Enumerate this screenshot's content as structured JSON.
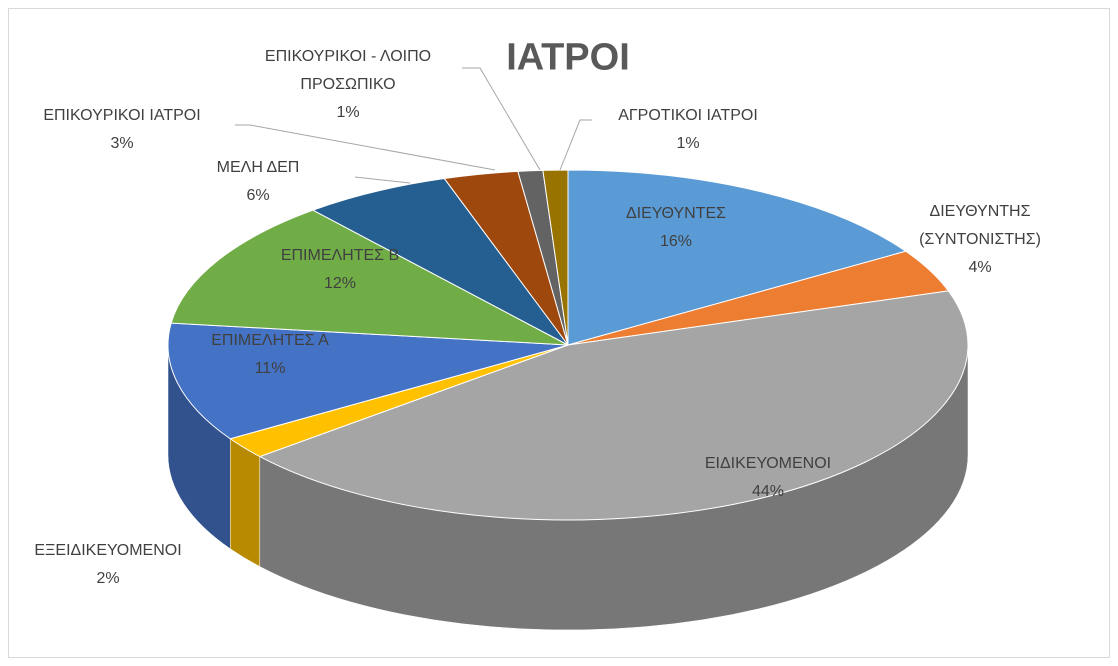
{
  "chart_data": {
    "type": "pie3d",
    "title": "ΙΑΤΡΟΙ",
    "categories": [
      "ΔΙΕΥΘΥΝΤΕΣ",
      "ΔΙΕΥΘΥΝΤΗΣ (ΣΥΝΤΟΝΙΣΤΗΣ)",
      "ΕΙΔΙΚΕΥΟΜΕΝΟΙ",
      "ΕΞΕΙΔΙΚΕΥΟΜΕΝΟΙ",
      "ΕΠΙΜΕΛΗΤΕΣ Α",
      "ΕΠΙΜΕΛΗΤΕΣ Β",
      "ΜΕΛΗ ΔΕΠ",
      "ΕΠΙΚΟΥΡΙΚΟΙ ΙΑΤΡΟΙ",
      "ΕΠΙΚΟΥΡΙΚΟΙ - ΛΟΙΠΟ ΠΡΟΣΩΠΙΚΟ",
      "ΑΓΡΟΤΙΚΟΙ ΙΑΤΡΟΙ"
    ],
    "values": [
      16,
      4,
      44,
      2,
      11,
      12,
      6,
      3,
      1,
      1
    ],
    "value_labels": [
      "16%",
      "4%",
      "44%",
      "2%",
      "11%",
      "12%",
      "6%",
      "3%",
      "1%",
      "1%"
    ],
    "colors": [
      "#5b9bd5",
      "#ed7d31",
      "#a5a5a5",
      "#ffc000",
      "#4472c4",
      "#70ad47",
      "#255e91",
      "#9e480e",
      "#636363",
      "#997300"
    ]
  }
}
